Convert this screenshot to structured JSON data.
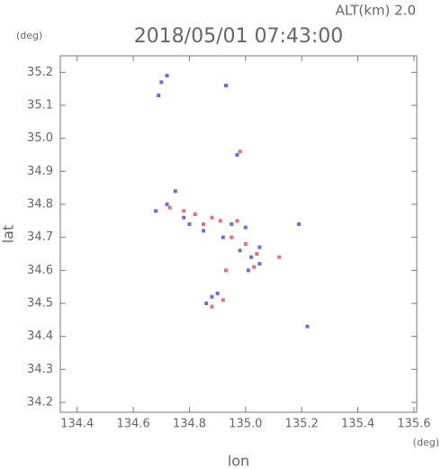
{
  "chart_data": {
    "type": "scatter",
    "title": "2018/05/01 07:43:00",
    "annotation": "ALT(km) 2.0",
    "y_unit": "(deg)",
    "x_unit": "(deg)",
    "xlabel": "lon",
    "ylabel": "lat",
    "xlim": [
      134.34,
      135.61
    ],
    "ylim": [
      34.17,
      35.25
    ],
    "xticks": [
      {
        "value": 134.4,
        "label": "134.4"
      },
      {
        "value": 134.6,
        "label": "134.6"
      },
      {
        "value": 134.8,
        "label": "134.8"
      },
      {
        "value": 135.0,
        "label": "135.0"
      },
      {
        "value": 135.2,
        "label": "135.2"
      },
      {
        "value": 135.4,
        "label": "135.4"
      },
      {
        "value": 135.6,
        "label": "135.6"
      }
    ],
    "yticks": [
      {
        "value": 34.2,
        "label": "34.2"
      },
      34.3,
      34.4,
      34.5,
      34.6,
      34.7,
      34.8,
      34.9,
      {
        "value": 35.0,
        "label": "35.0"
      },
      35.1,
      {
        "value": 35.2,
        "label": "35.2"
      }
    ],
    "series": [
      {
        "color": "#6a6af0",
        "x": [
          134.7,
          134.72,
          134.69,
          134.93,
          134.97,
          134.75,
          134.72,
          134.78,
          134.8,
          134.85,
          134.92,
          134.98,
          135.02,
          135.05,
          135.01,
          134.88,
          134.86,
          134.9,
          135.22,
          135.19,
          135.0,
          134.95,
          135.05,
          134.68
        ],
        "values": [
          35.17,
          35.19,
          35.13,
          35.16,
          34.95,
          34.84,
          34.8,
          34.76,
          34.74,
          34.72,
          34.7,
          34.66,
          34.64,
          34.62,
          34.6,
          34.52,
          34.5,
          34.53,
          34.43,
          34.74,
          34.73,
          34.74,
          34.67,
          34.78
        ]
      },
      {
        "color": "#f06a7a",
        "x": [
          134.98,
          134.73,
          134.82,
          134.88,
          134.91,
          134.85,
          134.95,
          135.0,
          135.04,
          135.03,
          134.93,
          134.88,
          134.92,
          134.78,
          134.97,
          135.12
        ],
        "values": [
          34.96,
          34.79,
          34.77,
          34.76,
          34.75,
          34.74,
          34.7,
          34.68,
          34.65,
          34.61,
          34.6,
          34.49,
          34.51,
          34.78,
          34.75,
          34.64
        ]
      }
    ]
  }
}
